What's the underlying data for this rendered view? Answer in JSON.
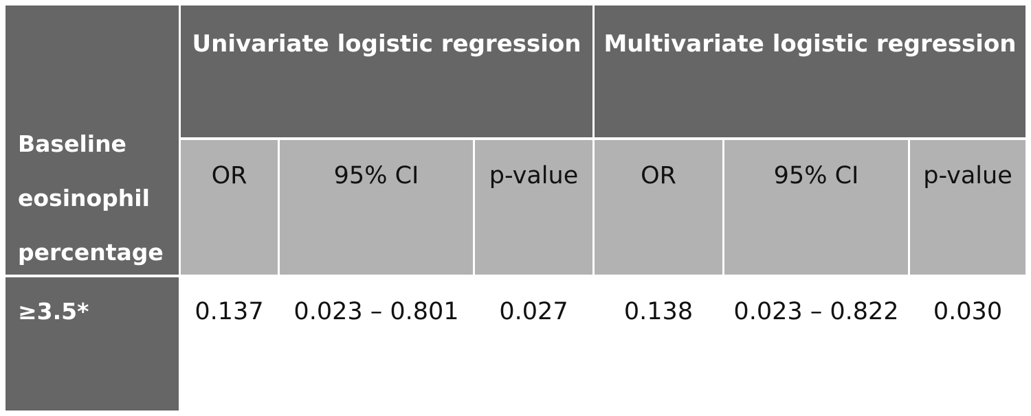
{
  "table": {
    "row_header": [
      "Baseline",
      "eosinophil",
      "percentage"
    ],
    "groups": [
      "Univariate logistic regression",
      "Multivariate logistic regression"
    ],
    "subheaders": [
      "OR",
      "95% CI",
      "p-value",
      "OR",
      "95% CI",
      "p-value"
    ],
    "rows": [
      {
        "label": "≥3.5*",
        "values": [
          "0.137",
          "0.023 – 0.801",
          "0.027",
          "0.138",
          "0.023 – 0.822",
          "0.030"
        ]
      }
    ]
  },
  "colors": {
    "dark_header": "#666666",
    "light_header": "#b2b2b2",
    "body": "#ffffff"
  }
}
